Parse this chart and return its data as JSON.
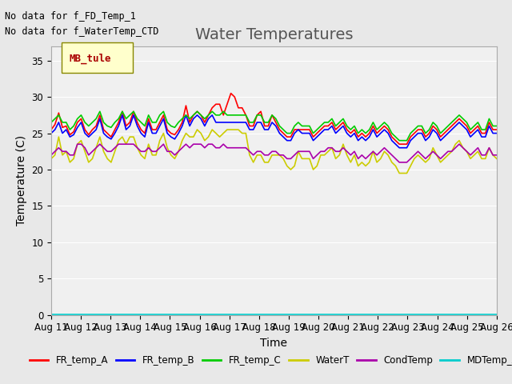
{
  "title": "Water Temperatures",
  "ylabel": "Temperature (C)",
  "xlabel": "Time",
  "annotations": [
    "No data for f_FD_Temp_1",
    "No data for f_WaterTemp_CTD"
  ],
  "legend_label": "MB_tule",
  "ylim": [
    0,
    37
  ],
  "yticks": [
    0,
    5,
    10,
    15,
    20,
    25,
    30,
    35
  ],
  "date_start": 11,
  "date_end": 26,
  "series": {
    "FR_temp_A": {
      "color": "#ff0000",
      "values": [
        25.5,
        26.2,
        27.8,
        25.8,
        26.0,
        24.8,
        25.2,
        26.5,
        27.0,
        25.5,
        24.8,
        25.5,
        26.0,
        27.5,
        25.5,
        25.0,
        24.5,
        25.5,
        26.5,
        28.0,
        26.0,
        26.5,
        28.0,
        26.5,
        25.5,
        25.0,
        27.0,
        25.5,
        25.5,
        26.5,
        27.5,
        25.5,
        25.0,
        24.8,
        25.5,
        26.5,
        28.8,
        26.5,
        27.5,
        28.0,
        27.5,
        26.5,
        27.5,
        28.5,
        29.0,
        29.0,
        27.5,
        29.0,
        30.5,
        30.0,
        28.5,
        28.5,
        27.5,
        26.0,
        26.0,
        27.5,
        28.0,
        26.0,
        26.0,
        27.5,
        26.5,
        25.5,
        25.0,
        24.5,
        24.5,
        25.5,
        25.5,
        25.5,
        25.5,
        25.5,
        24.5,
        25.0,
        25.5,
        26.0,
        26.0,
        26.5,
        25.5,
        26.0,
        26.5,
        25.5,
        25.0,
        25.5,
        24.5,
        25.0,
        24.5,
        25.0,
        26.0,
        25.0,
        25.5,
        26.0,
        25.5,
        24.5,
        24.0,
        23.5,
        23.5,
        23.5,
        24.5,
        25.0,
        25.5,
        25.5,
        24.5,
        25.0,
        26.0,
        25.5,
        24.5,
        25.0,
        25.5,
        26.0,
        26.5,
        27.0,
        26.5,
        26.0,
        25.0,
        25.5,
        26.0,
        25.0,
        25.0,
        26.5,
        25.5,
        25.5
      ]
    },
    "FR_temp_B": {
      "color": "#0000ff",
      "values": [
        25.0,
        25.5,
        26.5,
        25.0,
        25.5,
        24.5,
        24.8,
        25.8,
        26.5,
        25.0,
        24.5,
        25.0,
        25.5,
        27.0,
        25.0,
        24.5,
        24.2,
        25.0,
        26.0,
        27.5,
        25.5,
        26.0,
        27.5,
        26.0,
        25.0,
        24.5,
        26.5,
        25.0,
        25.0,
        26.0,
        27.0,
        25.0,
        24.5,
        24.2,
        25.0,
        26.0,
        27.5,
        26.0,
        27.0,
        27.5,
        27.0,
        26.0,
        27.0,
        27.5,
        26.5,
        26.5,
        26.5,
        26.5,
        26.5,
        26.5,
        26.5,
        26.5,
        26.5,
        25.5,
        25.5,
        26.5,
        26.5,
        25.5,
        25.5,
        26.5,
        26.0,
        25.0,
        24.5,
        24.0,
        24.0,
        25.0,
        25.5,
        25.0,
        25.0,
        25.0,
        24.0,
        24.5,
        25.0,
        25.5,
        25.5,
        26.0,
        25.0,
        25.5,
        26.0,
        25.0,
        24.5,
        25.0,
        24.0,
        24.5,
        24.0,
        24.5,
        25.5,
        24.5,
        25.0,
        25.5,
        25.0,
        24.0,
        23.5,
        23.0,
        23.0,
        23.0,
        24.0,
        24.5,
        25.0,
        25.0,
        24.0,
        24.5,
        25.5,
        25.0,
        24.0,
        24.5,
        25.0,
        25.5,
        26.0,
        26.5,
        26.0,
        25.5,
        24.5,
        25.0,
        25.5,
        24.5,
        24.5,
        26.0,
        25.0,
        25.0
      ]
    },
    "FR_temp_C": {
      "color": "#00cc00",
      "values": [
        26.5,
        27.0,
        27.5,
        26.5,
        26.5,
        25.5,
        26.0,
        27.0,
        27.5,
        26.5,
        26.0,
        26.5,
        27.0,
        28.0,
        26.5,
        26.0,
        25.8,
        26.5,
        27.0,
        28.0,
        27.0,
        27.5,
        28.0,
        27.0,
        26.5,
        26.0,
        27.5,
        26.5,
        26.5,
        27.5,
        28.0,
        26.5,
        26.0,
        25.8,
        26.5,
        27.0,
        27.5,
        27.0,
        27.5,
        28.0,
        27.5,
        27.0,
        27.5,
        28.0,
        27.5,
        27.5,
        28.0,
        27.5,
        27.5,
        27.5,
        27.5,
        27.5,
        27.5,
        26.5,
        26.5,
        27.5,
        27.5,
        26.5,
        26.5,
        27.5,
        27.0,
        26.0,
        25.5,
        25.0,
        25.0,
        26.0,
        26.5,
        26.0,
        26.0,
        26.0,
        25.0,
        25.5,
        26.0,
        26.5,
        26.5,
        27.0,
        26.0,
        26.5,
        27.0,
        26.0,
        25.5,
        26.0,
        25.0,
        25.5,
        25.0,
        25.5,
        26.5,
        25.5,
        26.0,
        26.5,
        26.0,
        25.0,
        24.5,
        24.0,
        24.0,
        24.0,
        25.0,
        25.5,
        26.0,
        26.0,
        25.0,
        25.5,
        26.5,
        26.0,
        25.0,
        25.5,
        26.0,
        26.5,
        27.0,
        27.5,
        27.0,
        26.5,
        25.5,
        26.0,
        26.5,
        25.5,
        25.5,
        27.0,
        26.0,
        26.0
      ]
    },
    "WaterT": {
      "color": "#cccc00",
      "values": [
        21.5,
        22.0,
        24.5,
        22.0,
        22.5,
        21.0,
        21.5,
        23.5,
        24.0,
        22.5,
        21.0,
        21.5,
        23.0,
        24.5,
        22.5,
        21.5,
        21.0,
        22.5,
        24.0,
        24.5,
        23.5,
        24.5,
        24.5,
        23.0,
        22.0,
        21.5,
        23.5,
        22.0,
        22.0,
        24.0,
        25.0,
        23.0,
        22.0,
        21.5,
        22.5,
        24.0,
        25.0,
        24.5,
        24.5,
        25.5,
        25.0,
        24.0,
        24.5,
        25.5,
        25.0,
        24.5,
        25.0,
        25.5,
        25.5,
        25.5,
        25.5,
        25.0,
        25.0,
        22.0,
        21.0,
        22.0,
        22.0,
        21.0,
        21.0,
        22.0,
        22.0,
        22.0,
        21.5,
        20.5,
        20.0,
        20.5,
        22.5,
        21.5,
        21.5,
        21.5,
        20.0,
        20.5,
        22.0,
        22.0,
        22.5,
        23.0,
        21.5,
        22.0,
        23.5,
        22.0,
        21.0,
        22.0,
        20.5,
        21.0,
        20.5,
        21.0,
        22.5,
        21.0,
        21.5,
        22.5,
        22.0,
        21.0,
        20.5,
        19.5,
        19.5,
        19.5,
        20.5,
        21.5,
        22.0,
        21.5,
        21.0,
        21.5,
        23.0,
        22.0,
        21.0,
        21.5,
        22.0,
        22.5,
        23.5,
        24.0,
        23.0,
        22.5,
        21.5,
        22.0,
        22.5,
        21.5,
        21.5,
        23.0,
        22.0,
        21.5
      ]
    },
    "CondTemp": {
      "color": "#aa00aa",
      "values": [
        22.0,
        22.5,
        23.0,
        22.5,
        22.5,
        22.0,
        22.0,
        23.5,
        23.5,
        23.0,
        22.0,
        22.5,
        23.0,
        23.5,
        23.0,
        22.5,
        22.5,
        23.0,
        23.5,
        23.5,
        23.5,
        23.5,
        23.5,
        23.0,
        22.5,
        22.5,
        23.0,
        22.5,
        22.5,
        23.0,
        23.5,
        22.5,
        22.5,
        22.0,
        22.5,
        23.0,
        23.5,
        23.0,
        23.5,
        23.5,
        23.5,
        23.0,
        23.5,
        23.5,
        23.0,
        23.0,
        23.5,
        23.0,
        23.0,
        23.0,
        23.0,
        23.0,
        23.0,
        22.5,
        22.0,
        22.5,
        22.5,
        22.0,
        22.0,
        22.5,
        22.5,
        22.0,
        22.0,
        21.5,
        21.5,
        22.0,
        22.5,
        22.5,
        22.5,
        22.5,
        21.5,
        22.0,
        22.5,
        22.5,
        23.0,
        23.0,
        22.5,
        22.5,
        23.0,
        22.5,
        22.0,
        22.5,
        21.5,
        22.0,
        21.5,
        22.0,
        22.5,
        22.0,
        22.5,
        23.0,
        22.5,
        22.0,
        21.5,
        21.0,
        21.0,
        21.0,
        21.5,
        22.0,
        22.5,
        22.0,
        21.5,
        22.0,
        22.5,
        22.0,
        21.5,
        22.0,
        22.5,
        22.5,
        23.0,
        23.5,
        23.0,
        22.5,
        22.0,
        22.5,
        23.0,
        22.0,
        22.0,
        23.0,
        22.0,
        22.0
      ]
    },
    "MDTemp_A": {
      "color": "#00cccc",
      "values": [
        0.1,
        0.1,
        0.1,
        0.1,
        0.1,
        0.1,
        0.1,
        0.1,
        0.1,
        0.1,
        0.1,
        0.1,
        0.1,
        0.1,
        0.1,
        0.1,
        0.1,
        0.1,
        0.1,
        0.1,
        0.1,
        0.1,
        0.1,
        0.1,
        0.1,
        0.1,
        0.1,
        0.1,
        0.1,
        0.1,
        0.1,
        0.1,
        0.1,
        0.1,
        0.1,
        0.1,
        0.1,
        0.1,
        0.1,
        0.1,
        0.1,
        0.1,
        0.1,
        0.1,
        0.1,
        0.1,
        0.1,
        0.1,
        0.1,
        0.1,
        0.1,
        0.1,
        0.1,
        0.1,
        0.1,
        0.1,
        0.1,
        0.1,
        0.1,
        0.1,
        0.1,
        0.1,
        0.1,
        0.1,
        0.1,
        0.1,
        0.1,
        0.1,
        0.1,
        0.1,
        0.1,
        0.1,
        0.1,
        0.1,
        0.1,
        0.1,
        0.1,
        0.1,
        0.1,
        0.1,
        0.1,
        0.1,
        0.1,
        0.1,
        0.1,
        0.1,
        0.1,
        0.1,
        0.1,
        0.1,
        0.1,
        0.1,
        0.1,
        0.1,
        0.1,
        0.1,
        0.1,
        0.1,
        0.1,
        0.1,
        0.1,
        0.1,
        0.1,
        0.1,
        0.1,
        0.1,
        0.1,
        0.1,
        0.1,
        0.1,
        0.1,
        0.1,
        0.1,
        0.1,
        0.1,
        0.1,
        0.1,
        0.1,
        0.1,
        0.1
      ]
    }
  },
  "legend_entries": [
    {
      "label": "FR_temp_A",
      "color": "#ff0000"
    },
    {
      "label": "FR_temp_B",
      "color": "#0000ff"
    },
    {
      "label": "FR_temp_C",
      "color": "#00cc00"
    },
    {
      "label": "WaterT",
      "color": "#cccc00"
    },
    {
      "label": "CondTemp",
      "color": "#aa00aa"
    },
    {
      "label": "MDTemp_A",
      "color": "#00cccc"
    }
  ],
  "bg_color": "#e8e8e8",
  "plot_bg_color": "#f0f0f0",
  "tick_labels": [
    "Aug 11",
    "Aug 12",
    "Aug 13",
    "Aug 14",
    "Aug 15",
    "Aug 16",
    "Aug 17",
    "Aug 18",
    "Aug 19",
    "Aug 20",
    "Aug 21",
    "Aug 22",
    "Aug 23",
    "Aug 24",
    "Aug 25",
    "Aug 26"
  ],
  "n_points": 120,
  "title_fontsize": 14,
  "axis_fontsize": 10,
  "tick_fontsize": 8.5
}
